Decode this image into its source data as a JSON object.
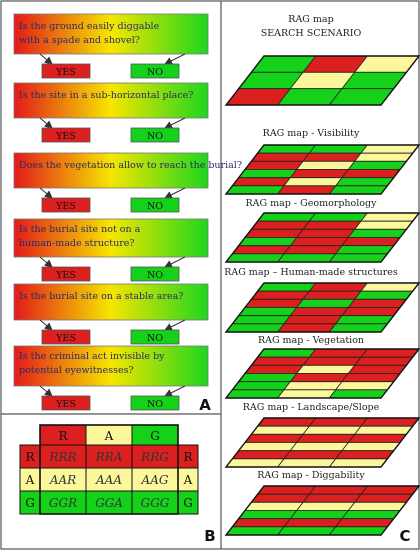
{
  "colors": {
    "red": "#dc1f1f",
    "green": "#14d21a",
    "yellow": "#fbf79a",
    "grid": "#111111"
  },
  "panel_labels": {
    "a": "A",
    "b": "B",
    "c": "C"
  },
  "questions": [
    {
      "text": "Is the ground easily diggable with a spade and shovel?",
      "yes": "YES",
      "no": "NO"
    },
    {
      "text": "Is the site in a sub-horizontal place?",
      "yes": "YES",
      "no": "NO"
    },
    {
      "text": "Does the vegetation allow to reach the burial?",
      "yes": "YES",
      "no": "NO"
    },
    {
      "text": "Is the burial site not on a human-made structure?",
      "yes": "YES",
      "no": "NO"
    },
    {
      "text": "Is the burial site on a stable area?",
      "yes": "YES",
      "no": "NO"
    },
    {
      "text": "Is the criminal act invisible by potential eyewitnesses?",
      "yes": "YES",
      "no": "NO"
    }
  ],
  "matrix": {
    "col_headers": [
      "R",
      "A",
      "G"
    ],
    "row_headers": [
      "R",
      "A",
      "G"
    ],
    "cells": [
      [
        "RRR",
        "RRA",
        "RRG"
      ],
      [
        "AAR",
        "AAA",
        "AAG"
      ],
      [
        "GGR",
        "GGA",
        "GGG"
      ]
    ],
    "colors": [
      [
        "red",
        "red",
        "red"
      ],
      [
        "yellow",
        "yellow",
        "yellow"
      ],
      [
        "green",
        "green",
        "green"
      ]
    ]
  },
  "maps": [
    {
      "title": "RAG map",
      "subtitle": "SEARCH SCENARIO",
      "cells": [
        "G",
        "R",
        "Y",
        "G",
        "Y",
        "G",
        "R",
        "G",
        "G"
      ]
    },
    {
      "title": "RAG map - Visibility",
      "subtitle": "",
      "cells": [
        "G",
        "G",
        "Y",
        "R",
        "R",
        "Y",
        "R",
        "Y",
        "G",
        "G",
        "R",
        "R",
        "R",
        "Y",
        "G",
        "G",
        "R",
        "G"
      ]
    },
    {
      "title": "RAG map - Geomorphology",
      "subtitle": "",
      "cells": [
        "G",
        "G",
        "Y",
        "R",
        "R",
        "Y",
        "R",
        "R",
        "G",
        "G",
        "R",
        "R",
        "R",
        "R",
        "G",
        "G",
        "G",
        "G"
      ]
    },
    {
      "title": "RAG map – Human-made structures",
      "subtitle": "",
      "cells": [
        "G",
        "R",
        "Y",
        "R",
        "R",
        "G",
        "R",
        "G",
        "R",
        "G",
        "R",
        "R",
        "G",
        "R",
        "G",
        "G",
        "R",
        "G"
      ]
    },
    {
      "title": "RAG map - Vegetation",
      "subtitle": "",
      "cells": [
        "G",
        "R",
        "R",
        "R",
        "R",
        "R",
        "R",
        "Y",
        "R",
        "G",
        "R",
        "R",
        "G",
        "Y",
        "Y",
        "G",
        "Y",
        "G"
      ]
    },
    {
      "title": "RAG map - Landscape/Slope",
      "subtitle": "",
      "cells": [
        "R",
        "R",
        "R",
        "Y",
        "Y",
        "Y",
        "R",
        "R",
        "R",
        "Y",
        "Y",
        "Y",
        "R",
        "R",
        "R",
        "Y",
        "Y",
        "Y"
      ]
    },
    {
      "title": "RAG map - Diggability",
      "subtitle": "",
      "cells": [
        "R",
        "R",
        "R",
        "R",
        "R",
        "R",
        "Y",
        "Y",
        "Y",
        "G",
        "G",
        "G",
        "R",
        "R",
        "R",
        "G",
        "G",
        "G"
      ]
    }
  ]
}
